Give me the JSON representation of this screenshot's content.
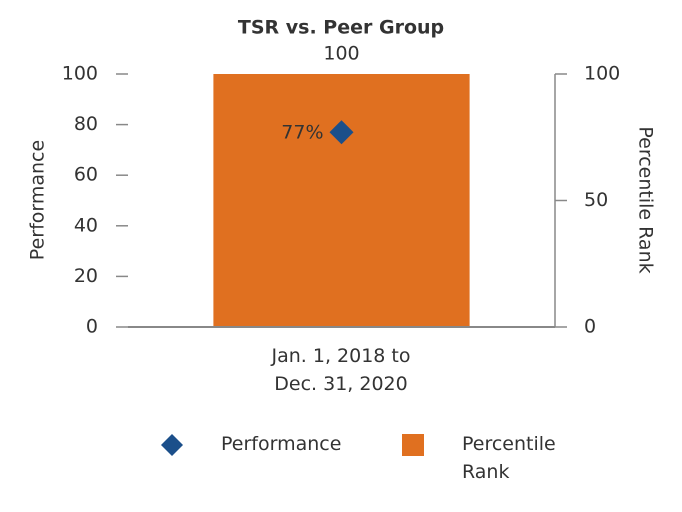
{
  "chart_data": {
    "type": "bar",
    "title": "TSR vs. Peer Group",
    "categories": [
      "Jan. 1, 2018 to Dec. 31, 2020"
    ],
    "series": [
      {
        "name": "Performance",
        "type": "scatter",
        "color": "#1b4f8a",
        "values": [
          77
        ],
        "value_labels": [
          "77%"
        ]
      },
      {
        "name": "Percentile Rank",
        "type": "bar",
        "color": "#e07020",
        "values": [
          100
        ],
        "axis": "y2"
      }
    ],
    "ylabel": "Performance",
    "y2label": "Percentile Rank",
    "ylim": [
      0,
      100
    ],
    "yticks": [
      0,
      20,
      40,
      60,
      80,
      100
    ],
    "y2lim": [
      0,
      100
    ],
    "y2ticks": [
      0,
      50,
      100
    ],
    "legend": "bottom"
  }
}
